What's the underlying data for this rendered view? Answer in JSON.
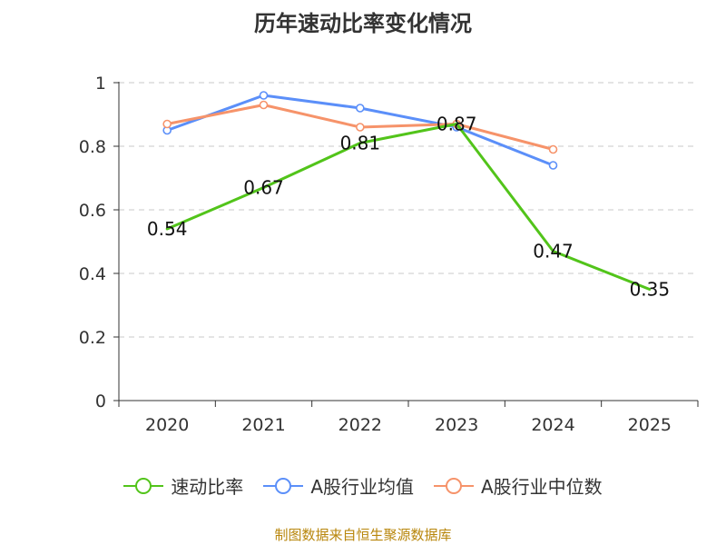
{
  "chart_data": {
    "type": "line",
    "title": "历年速动比率变化情况",
    "categories": [
      "2020",
      "2021",
      "2022",
      "2023",
      "2024",
      "2025"
    ],
    "ylim": [
      0,
      1
    ],
    "yticks": [
      0,
      0.2,
      0.4,
      0.6,
      0.8,
      1
    ],
    "ytick_labels": [
      "0",
      "0.2",
      "0.4",
      "0.6",
      "0.8",
      "1"
    ],
    "grid": true,
    "legend_position": "bottom-center",
    "series": [
      {
        "name": "速动比率",
        "color": "#52c41a",
        "values": [
          0.54,
          0.67,
          0.81,
          0.87,
          0.47,
          0.35
        ],
        "data_labels": [
          "0.54",
          "0.67",
          "0.81",
          "0.87",
          "0.47",
          "0.35"
        ],
        "show_markers": false
      },
      {
        "name": "A股行业均值",
        "color": "#5b8ff9",
        "values": [
          0.85,
          0.96,
          0.92,
          0.86,
          0.74,
          null
        ],
        "show_markers": true
      },
      {
        "name": "A股行业中位数",
        "color": "#f6936a",
        "values": [
          0.87,
          0.93,
          0.86,
          0.87,
          0.79,
          null
        ],
        "show_markers": true
      }
    ]
  },
  "source": "制图数据来自恒生聚源数据库"
}
